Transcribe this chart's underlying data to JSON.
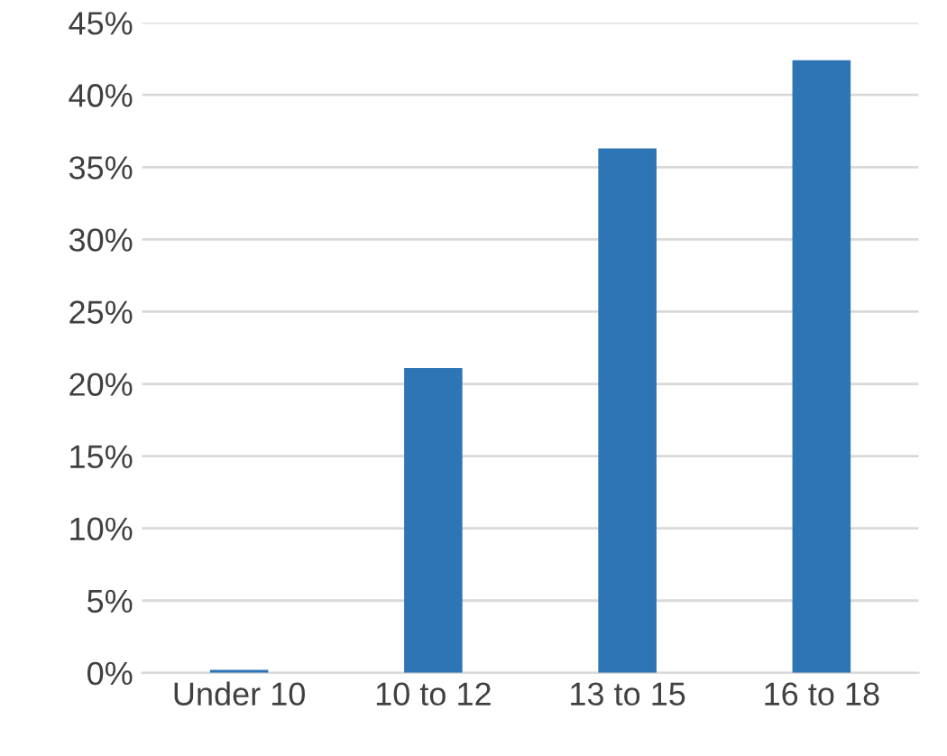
{
  "chart_data": {
    "type": "bar",
    "categories": [
      "Under 10",
      "10 to 12",
      "13 to 15",
      "16 to 18"
    ],
    "values": [
      0.2,
      21.1,
      36.3,
      42.4
    ],
    "color": "#2e75b6",
    "ylim": [
      0,
      45
    ],
    "yticks": [
      {
        "value": 0,
        "label": "0%"
      },
      {
        "value": 5,
        "label": "5%"
      },
      {
        "value": 10,
        "label": "10%"
      },
      {
        "value": 15,
        "label": "15%"
      },
      {
        "value": 20,
        "label": "20%"
      },
      {
        "value": 25,
        "label": "25%"
      },
      {
        "value": 30,
        "label": "30%"
      },
      {
        "value": 35,
        "label": "35%"
      },
      {
        "value": 40,
        "label": "40%"
      },
      {
        "value": 45,
        "label": "45%"
      }
    ],
    "grid": "y"
  }
}
